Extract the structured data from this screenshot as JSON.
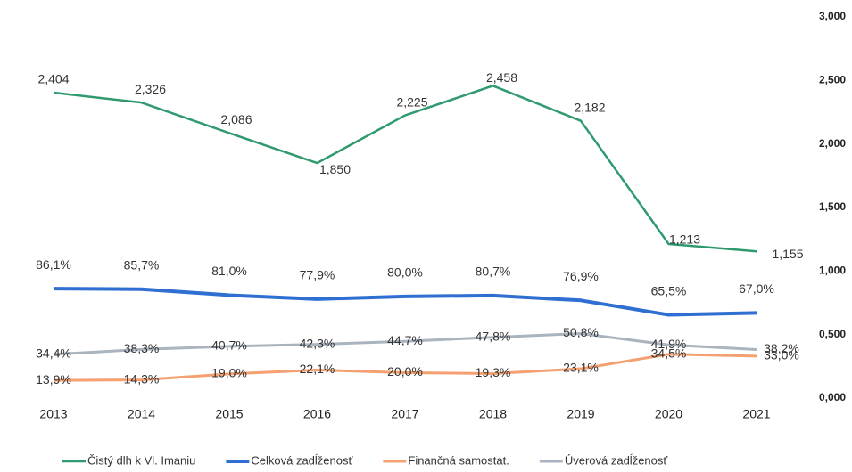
{
  "chart_data": {
    "type": "line",
    "categories": [
      "2013",
      "2014",
      "2015",
      "2016",
      "2017",
      "2018",
      "2019",
      "2020",
      "2021"
    ],
    "ylim": [
      0,
      3
    ],
    "y_axis_position": "right",
    "yticks": [
      {
        "value": 0,
        "label": "0,000"
      },
      {
        "value": 0.5,
        "label": "0,500"
      },
      {
        "value": 1,
        "label": "1,000"
      },
      {
        "value": 1.5,
        "label": "1,500"
      },
      {
        "value": 2,
        "label": "2,000"
      },
      {
        "value": 2.5,
        "label": "2,500"
      },
      {
        "value": 3,
        "label": "3,000"
      }
    ],
    "grid": false,
    "legend": "bottom",
    "series": [
      {
        "name": "Čistý dlh k Vl. Imaniu",
        "color": "#2e9a6e",
        "width": 2.5,
        "values": [
          2.404,
          2.326,
          2.086,
          1.85,
          2.225,
          2.458,
          2.182,
          1.213,
          1.155
        ],
        "value_labels": [
          "2,404",
          "2,326",
          "2,086",
          "1,850",
          "2,225",
          "2,458",
          "2,182",
          "1,213",
          "1,155"
        ]
      },
      {
        "name": "Celková zadĺženosť",
        "color": "#2f6fd1",
        "width": 4,
        "values": [
          0.861,
          0.857,
          0.81,
          0.779,
          0.8,
          0.807,
          0.769,
          0.655,
          0.67
        ],
        "value_labels": [
          "86,1%",
          "85,7%",
          "81,0%",
          "77,9%",
          "80,0%",
          "80,7%",
          "76,9%",
          "65,5%",
          "67,0%"
        ]
      },
      {
        "name": "Finančná samostat.",
        "color": "#f4a070",
        "width": 3,
        "values": [
          0.139,
          0.143,
          0.19,
          0.221,
          0.2,
          0.193,
          0.231,
          0.345,
          0.33
        ],
        "value_labels": [
          "13,9%",
          "14,3%",
          "19,0%",
          "22,1%",
          "20,0%",
          "19,3%",
          "23,1%",
          "34,5%",
          "33,0%"
        ]
      },
      {
        "name": "Úverová zadĺženosť",
        "color": "#aab4bf",
        "width": 3,
        "values": [
          0.344,
          0.383,
          0.407,
          0.423,
          0.447,
          0.478,
          0.508,
          0.419,
          0.382
        ],
        "value_labels": [
          "34,4%",
          "38,3%",
          "40,7%",
          "42,3%",
          "44,7%",
          "47,8%",
          "50,8%",
          "41,9%",
          "38,2%"
        ]
      }
    ]
  }
}
